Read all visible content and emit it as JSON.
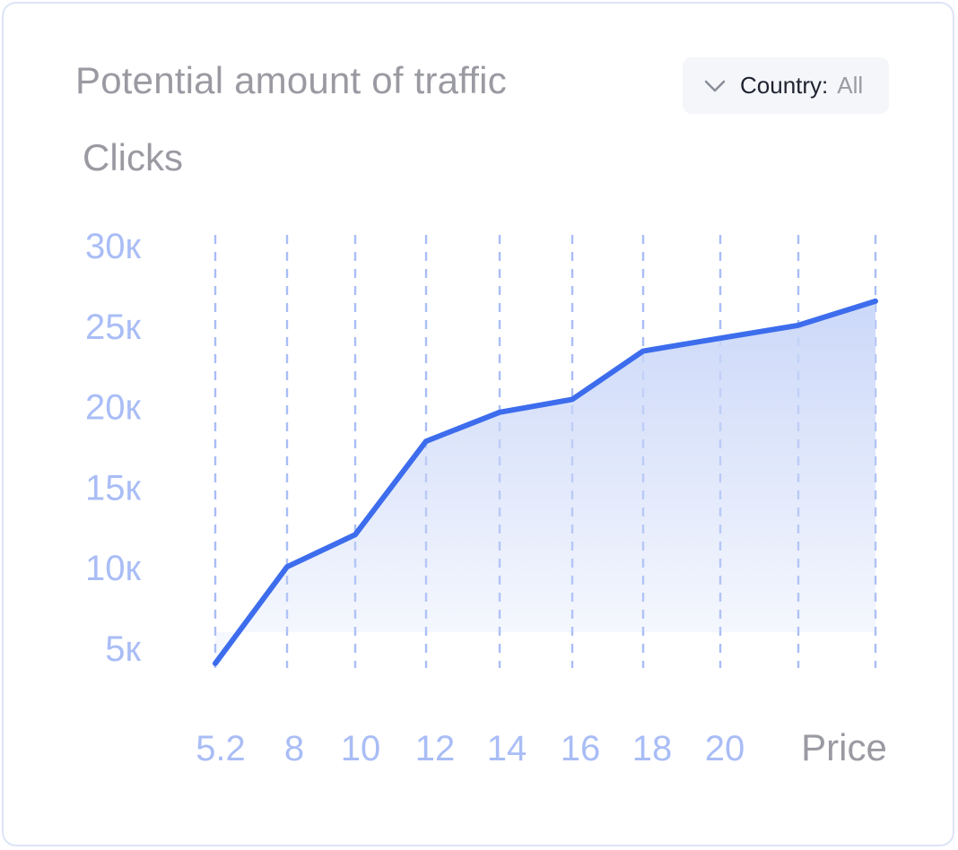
{
  "title": "Potential amount of traffic",
  "filter": {
    "label": "Country:",
    "value": "All",
    "icon": "chevron-down-icon"
  },
  "colors": {
    "line": "#3d6ded",
    "grid": "#a9bdf6",
    "tick": "#a9bdf6",
    "fill": "#c9d6f8"
  },
  "chart_data": {
    "type": "area",
    "ylabel": "Clicks",
    "xlabel": "Price",
    "x_ticks": [
      "5.2",
      "8",
      "10",
      "12",
      "14",
      "16",
      "18",
      "20"
    ],
    "y_ticks": [
      "30к",
      "25к",
      "20к",
      "15к",
      "10к",
      "5к"
    ],
    "ylim": [
      5000,
      30000
    ],
    "series": [
      {
        "x": [
          5.2,
          8,
          10,
          12,
          14,
          16,
          18,
          20,
          22,
          24
        ],
        "y": [
          4000,
          10000,
          12000,
          17800,
          19600,
          20400,
          23400,
          24200,
          25000,
          26500
        ]
      }
    ],
    "grid": "vertical-dashed"
  }
}
